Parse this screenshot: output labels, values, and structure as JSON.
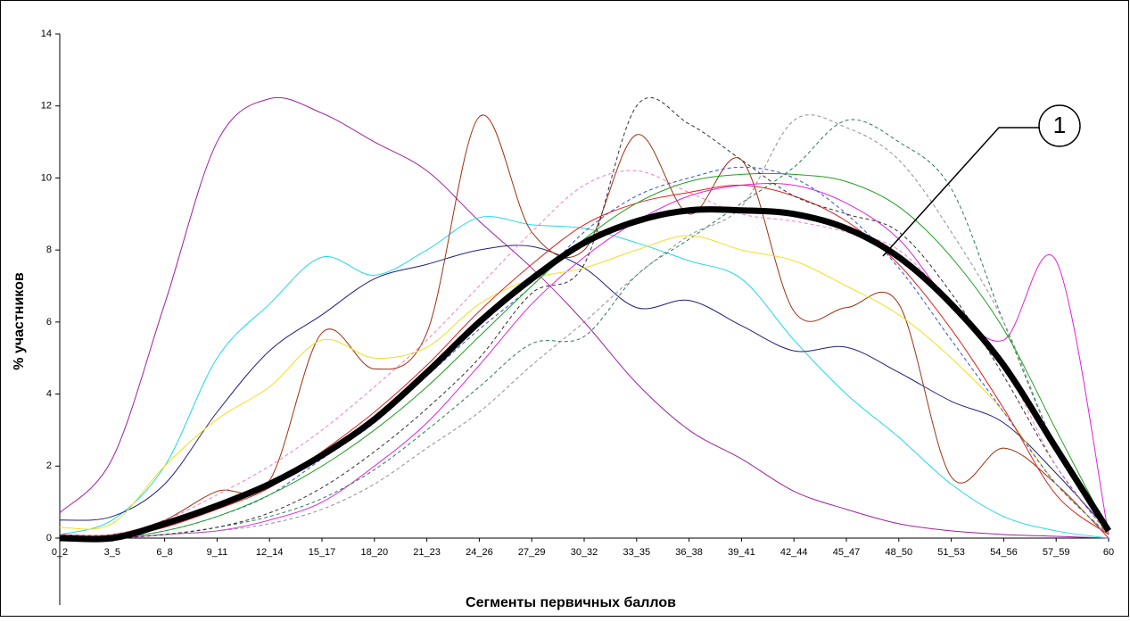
{
  "chart_data": {
    "type": "line",
    "xlabel": "Сегменты первичных баллов",
    "ylabel": "% участников",
    "annotation": "1",
    "categories": [
      "0_2",
      "3_5",
      "6_8",
      "9_11",
      "12_14",
      "15_17",
      "18_20",
      "21_23",
      "24_26",
      "27_29",
      "30_32",
      "33_35",
      "36_38",
      "39_41",
      "42_44",
      "45_47",
      "48_50",
      "51_53",
      "54_56",
      "57_59",
      "60"
    ],
    "ylim": [
      0,
      14
    ],
    "yticks": [
      0,
      2,
      4,
      6,
      8,
      10,
      12,
      14
    ],
    "series": [
      {
        "color": "#a020a0",
        "style": "solid",
        "values": [
          0.7,
          2.2,
          6.5,
          11,
          12.2,
          11.8,
          11,
          10.2,
          8.8,
          7.5,
          6,
          4.3,
          3,
          2.2,
          1.3,
          0.8,
          0.4,
          0.2,
          0.1,
          0.05,
          0
        ]
      },
      {
        "color": "#20d8e8",
        "style": "solid",
        "values": [
          0.1,
          0.5,
          2,
          5,
          6.5,
          7.8,
          7.3,
          8,
          8.9,
          8.7,
          8.6,
          8.2,
          7.7,
          7.2,
          5.5,
          4,
          2.8,
          1.5,
          0.6,
          0.2,
          0
        ]
      },
      {
        "color": "#202080",
        "style": "solid",
        "values": [
          0.5,
          0.6,
          1.5,
          3.5,
          5.2,
          6.2,
          7.2,
          7.6,
          8,
          8.1,
          7.5,
          6.4,
          6.6,
          5.9,
          5.2,
          5.3,
          4.6,
          3.8,
          3.2,
          1.8,
          0.2
        ]
      },
      {
        "color": "#a03010",
        "style": "solid",
        "values": [
          0.1,
          0.1,
          0.5,
          1.3,
          1.6,
          5.7,
          4.7,
          5.7,
          11.7,
          8.5,
          8,
          11.2,
          9,
          10.5,
          6.3,
          6.4,
          6.5,
          1.7,
          2.5,
          1.5,
          0
        ]
      },
      {
        "color": "#e020e0",
        "style": "solid",
        "values": [
          0,
          0,
          0.1,
          0.2,
          0.5,
          1,
          2,
          3.2,
          4.8,
          6.5,
          7.8,
          8.8,
          9.5,
          9.8,
          9.8,
          9.3,
          8.3,
          6.5,
          5.5,
          7.7,
          0.1
        ]
      },
      {
        "color": "#2a7a50",
        "style": "dashed",
        "values": [
          0,
          0,
          0.1,
          0.3,
          0.6,
          1.1,
          1.9,
          3,
          4.2,
          5.4,
          5.6,
          7.3,
          8.3,
          9.3,
          10.3,
          11.6,
          11,
          9.7,
          6,
          2.5,
          0.2
        ]
      },
      {
        "color": "#909090",
        "style": "dashed",
        "values": [
          0,
          0,
          0.1,
          0.2,
          0.4,
          0.8,
          1.5,
          2.5,
          3.5,
          4.8,
          6,
          7.3,
          8.4,
          9.2,
          11.6,
          11.4,
          10.5,
          8.5,
          6,
          2.5,
          0.1
        ]
      },
      {
        "color": "#f0e020",
        "style": "solid",
        "values": [
          0.3,
          0.4,
          2,
          3.3,
          4.2,
          5.5,
          5,
          5.3,
          6.5,
          7.2,
          7.5,
          8,
          8.4,
          8,
          7.7,
          7,
          6.2,
          5,
          3.5,
          1.5,
          0.1
        ]
      },
      {
        "color": "#3050e0",
        "style": "dashed",
        "values": [
          0,
          0,
          0.2,
          0.6,
          1.2,
          2.2,
          3.2,
          4.5,
          5.8,
          7,
          8.5,
          9.5,
          10,
          10.3,
          10,
          9,
          7.5,
          5.5,
          3.5,
          1.5,
          0.1
        ]
      },
      {
        "color": "#e02020",
        "style": "solid",
        "values": [
          0,
          0,
          0.3,
          0.8,
          1.4,
          2.4,
          3.5,
          4.8,
          6.3,
          7.6,
          8.7,
          9.3,
          9.6,
          9.8,
          9.5,
          8.8,
          7.6,
          5.8,
          3.6,
          1.2,
          0.1
        ]
      },
      {
        "color": "#20a020",
        "style": "solid",
        "values": [
          0,
          0,
          0.2,
          0.6,
          1.2,
          2,
          3,
          4.2,
          5.6,
          7,
          8.3,
          9.3,
          9.9,
          10.1,
          10.1,
          9.9,
          9.2,
          7.8,
          5.8,
          3,
          0.2
        ]
      },
      {
        "color": "#303030",
        "style": "dashed",
        "values": [
          0,
          0,
          0.1,
          0.3,
          0.7,
          1.4,
          2.4,
          3.6,
          5,
          6.8,
          7.6,
          12,
          11.5,
          10.5,
          9.5,
          9,
          8.5,
          6.8,
          4.5,
          2,
          0.1
        ]
      },
      {
        "color": "#f080c0",
        "style": "dashed",
        "values": [
          0.1,
          0.1,
          0.5,
          1.2,
          2,
          3,
          4.2,
          5.5,
          7,
          8.5,
          9.8,
          10.2,
          9.6,
          9,
          8.8,
          8.5,
          8,
          6.5,
          4.8,
          2,
          0.1
        ]
      },
      {
        "color": "#000000",
        "style": "bold",
        "values": [
          0,
          0,
          0.4,
          0.9,
          1.5,
          2.3,
          3.3,
          4.6,
          6,
          7.2,
          8.2,
          8.8,
          9.1,
          9.1,
          9,
          8.6,
          7.8,
          6.5,
          4.8,
          2.5,
          0.2
        ]
      }
    ]
  }
}
